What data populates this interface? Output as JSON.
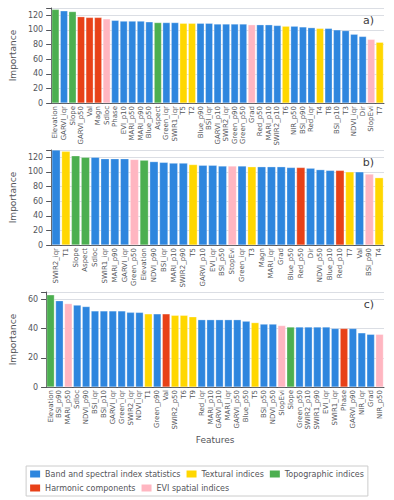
{
  "chart_data": [
    {
      "type": "bar",
      "title": "a)",
      "categories": [
        "Elevation",
        "GARVI_iqr",
        "Slope",
        "GARVI_p50",
        "Val",
        "Magn",
        "Sdloc",
        "Phase",
        "EVI_p10",
        "MARI_p50",
        "MARI_p90",
        "Blue_p50",
        "Aspect",
        "Green_iqr",
        "SWIR1_iqr",
        "T5",
        "T2",
        "Blue_p90",
        "BSI_iqr",
        "GARVI_p10",
        "SWIR2_iqr",
        "Green_p90",
        "Green_p50",
        "Grad",
        "Red_p50",
        "MARI_p10",
        "SWIR2_p10",
        "T6",
        "NIR_p50",
        "BSI_p90",
        "Red_iqr",
        "T4",
        "T8",
        "BSI_p10",
        "T3",
        "NDVI_iqr",
        "Dir",
        "SlopEvi",
        "T7"
      ],
      "values": [
        128,
        126,
        125,
        118,
        117,
        117,
        115,
        113,
        112,
        112,
        112,
        111,
        110,
        110,
        110,
        109,
        109,
        109,
        109,
        108,
        108,
        108,
        108,
        107,
        107,
        107,
        106,
        105,
        105,
        104,
        103,
        102,
        102,
        100,
        99,
        94,
        91,
        87,
        83
      ],
      "colors": [
        "#4CAF50",
        "#2e86de",
        "#4CAF50",
        "#e84118",
        "#e84118",
        "#e84118",
        "#FFB6C1",
        "#2e86de",
        "#2e86de",
        "#2e86de",
        "#2e86de",
        "#2e86de",
        "#4CAF50",
        "#2e86de",
        "#2e86de",
        "#FFD700",
        "#FFD700",
        "#2e86de",
        "#2e86de",
        "#2e86de",
        "#2e86de",
        "#2e86de",
        "#2e86de",
        "#FFB6C1",
        "#2e86de",
        "#2e86de",
        "#2e86de",
        "#FFD700",
        "#2e86de",
        "#2e86de",
        "#2e86de",
        "#FFD700",
        "#2e86de",
        "#2e86de",
        "#2e86de",
        "#2e86de",
        "#2e86de",
        "#FFB6C1",
        "#FFD700"
      ],
      "ylabel": "Importance",
      "ylim": [
        0,
        130
      ],
      "yticks": [
        0,
        20,
        40,
        60,
        80,
        100,
        120
      ],
      "grid": true
    },
    {
      "type": "bar",
      "title": "b)",
      "categories": [
        "SWIR2_iqr",
        "T1",
        "Slope",
        "Aspect",
        "Sdloc",
        "SWIR1_iqr",
        "MARI_p90",
        "GARVI_iqr",
        "Green_p50",
        "Elevation",
        "NDVI_p90",
        "BSI_iqr",
        "MARI_p10",
        "SWIR2_p90",
        "T5",
        "GARVI_p10",
        "EVI_iqr",
        "BSI_p50",
        "StopEvi",
        "Green_iqr",
        "T3",
        "Magn",
        "MARI_iqr",
        "Grad",
        "Blue_p50",
        "Red_p50",
        "Dir",
        "NDVI_p50",
        "Blue_p10",
        "Red_p10",
        "T7",
        "Val",
        "BSI_p90",
        "T4"
      ],
      "values": [
        130,
        128,
        122,
        120,
        120,
        118,
        118,
        118,
        117,
        116,
        114,
        113,
        112,
        112,
        110,
        109,
        109,
        108,
        108,
        108,
        107,
        107,
        107,
        107,
        106,
        106,
        105,
        103,
        102,
        102,
        100,
        100,
        97,
        92
      ],
      "colors": [
        "#2e86de",
        "#FFD700",
        "#4CAF50",
        "#4CAF50",
        "#2e86de",
        "#2e86de",
        "#2e86de",
        "#2e86de",
        "#FFB6C1",
        "#4CAF50",
        "#2e86de",
        "#2e86de",
        "#2e86de",
        "#2e86de",
        "#FFD700",
        "#2e86de",
        "#2e86de",
        "#2e86de",
        "#FFB6C1",
        "#2e86de",
        "#FFD700",
        "#2e86de",
        "#2e86de",
        "#2e86de",
        "#2e86de",
        "#e84118",
        "#2e86de",
        "#2e86de",
        "#2e86de",
        "#e84118",
        "#FFD700",
        "#2e86de",
        "#FFB6C1",
        "#FFD700"
      ],
      "ylabel": "Importance",
      "ylim": [
        0,
        130
      ],
      "yticks": [
        0,
        20,
        40,
        60,
        80,
        100,
        120
      ],
      "grid": true
    },
    {
      "type": "bar",
      "title": "c)",
      "categories": [
        "Elevation",
        "BSI_p90",
        "MARI_p50",
        "Sdloc",
        "NDVI_p90",
        "BSI_iqr",
        "BSI_p10",
        "GARVI_iqr",
        "Green_iqr",
        "SWIR2_iqr",
        "NDVI_iqr",
        "T1",
        "Green_p90",
        "Val",
        "SWIR2_p50",
        "T6",
        "T9",
        "Red_iqr",
        "MARI_p10",
        "GARVI_p10",
        "MARI_iqr",
        "GARVI_p50",
        "Blue_p50",
        "T5",
        "BSI_p50",
        "NDVI_p50",
        "SlopEvi",
        "Slope",
        "Green_p50",
        "SWIR2_p10",
        "SWIR1_p90",
        "EVI_iqr",
        "SWIR1_iqr",
        "Phase",
        "GARVI_p90",
        "NIR_iqr",
        "Grad",
        "NIR_p50"
      ],
      "values": [
        63,
        59,
        57,
        56,
        55,
        52,
        52,
        52,
        52,
        51,
        51,
        50,
        50,
        50,
        49,
        49,
        48,
        46,
        46,
        46,
        46,
        46,
        45,
        44,
        43,
        43,
        42,
        41,
        41,
        41,
        41,
        41,
        40,
        40,
        40,
        37,
        36,
        36
      ],
      "colors": [
        "#4CAF50",
        "#2e86de",
        "#FFB6C1",
        "#2e86de",
        "#2e86de",
        "#2e86de",
        "#2e86de",
        "#2e86de",
        "#2e86de",
        "#2e86de",
        "#2e86de",
        "#FFD700",
        "#2e86de",
        "#e84118",
        "#FFD700",
        "#FFD700",
        "#FFD700",
        "#2e86de",
        "#2e86de",
        "#2e86de",
        "#2e86de",
        "#2e86de",
        "#2e86de",
        "#FFD700",
        "#2e86de",
        "#2e86de",
        "#FFB6C1",
        "#4CAF50",
        "#2e86de",
        "#2e86de",
        "#2e86de",
        "#2e86de",
        "#2e86de",
        "#e84118",
        "#2e86de",
        "#2e86de",
        "#2e86de",
        "#FFB6C1"
      ],
      "xlabel": "Features",
      "ylabel": "Importance",
      "ylim": [
        0,
        65
      ],
      "yticks": [
        0,
        20,
        40,
        60
      ],
      "grid": true,
      "legend": "bottom",
      "legend_items": [
        {
          "name": "Band and spectral index statistics",
          "color": "#2e86de"
        },
        {
          "name": "Textural indices",
          "color": "#FFD700"
        },
        {
          "name": "Topographic indices",
          "color": "#4CAF50"
        },
        {
          "name": "Harmonic components",
          "color": "#e84118"
        },
        {
          "name": "EVI spatial indices",
          "color": "#FFB6C1"
        }
      ]
    }
  ]
}
